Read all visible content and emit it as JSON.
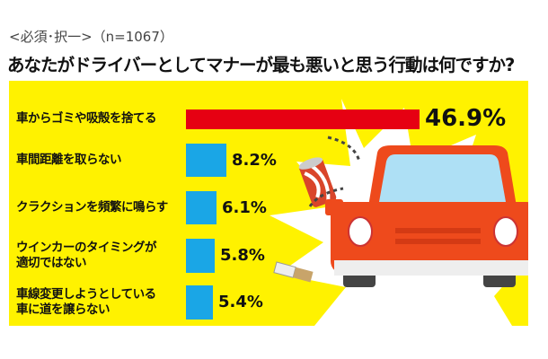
{
  "header": {
    "subtitle": "<必須･択一>（n=1067）",
    "title": "あなたがドライバーとしてマナーが最も悪いと思う行動は何ですか?"
  },
  "chart_data": {
    "type": "bar",
    "orientation": "horizontal",
    "title": "あなたがドライバーとしてマナーが最も悪いと思う行動は何ですか?",
    "categories": [
      "車からゴミや吸殻を捨てる",
      "車間距離を取らない",
      "クラクションを頻繁に鳴らす",
      "ウインカーのタイミングが適切ではない",
      "車線変更しようとしている車に道を譲らない"
    ],
    "category_lines": [
      [
        "車からゴミや吸殻を捨てる"
      ],
      [
        "車間距離を取らない"
      ],
      [
        "クラクションを頻繁に鳴らす"
      ],
      [
        "ウインカーのタイミングが",
        "適切ではない"
      ],
      [
        "車線変更しようとしている",
        "車に道を譲らない"
      ]
    ],
    "values": [
      46.9,
      8.2,
      6.1,
      5.8,
      5.4
    ],
    "value_labels": [
      "46.9%",
      "8.2%",
      "6.1%",
      "5.8%",
      "5.4%"
    ],
    "unit": "%",
    "xlim": [
      0,
      46.9
    ],
    "colors": [
      "#e60012",
      "#1aa6e6",
      "#1aa6e6",
      "#1aa6e6",
      "#1aa6e6"
    ],
    "grid": false
  },
  "colors": {
    "panel": "#fff200",
    "car": "#ee4a1c"
  }
}
